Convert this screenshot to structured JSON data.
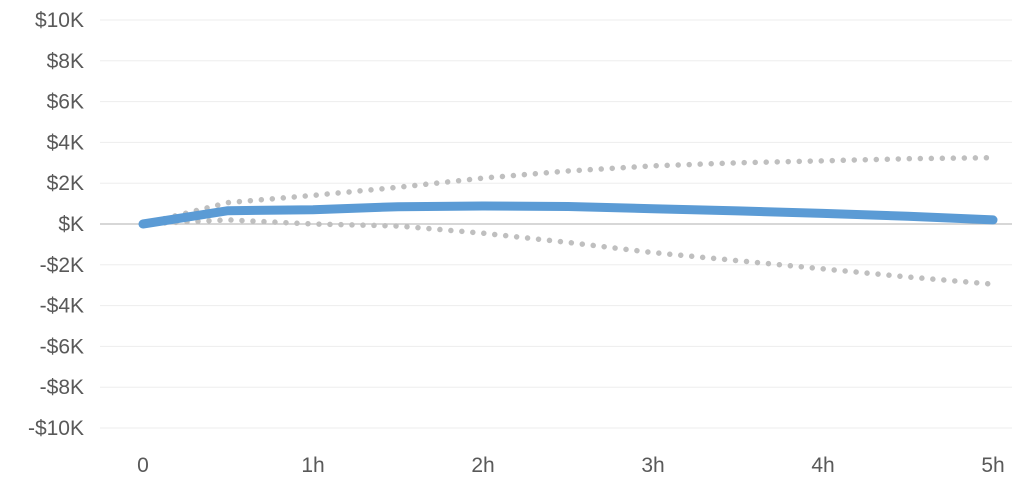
{
  "chart_data": {
    "type": "line",
    "title": "",
    "xlabel": "",
    "ylabel": "",
    "x": [
      0,
      0.5,
      1,
      1.5,
      2,
      2.5,
      3,
      3.5,
      4,
      4.5,
      5
    ],
    "x_tick_values": [
      0,
      1,
      2,
      3,
      4,
      5
    ],
    "x_tick_labels": [
      "0",
      "1h",
      "2h",
      "3h",
      "4h",
      "5h"
    ],
    "xlim": [
      0,
      5
    ],
    "y_tick_values": [
      10000,
      8000,
      6000,
      4000,
      2000,
      0,
      -2000,
      -4000,
      -6000,
      -8000,
      -10000
    ],
    "y_tick_labels": [
      "$10K",
      "$8K",
      "$6K",
      "$4K",
      "$2K",
      "$K",
      "-$2K",
      "-$4K",
      "-$6K",
      "-$8K",
      "-$10K"
    ],
    "ylim": [
      -10000,
      10000
    ],
    "grid": true,
    "legend": "none",
    "series": [
      {
        "values": [
          0,
          650,
          700,
          850,
          880,
          860,
          750,
          640,
          520,
          380,
          200
        ],
        "color": "#5B9BD5",
        "style": "solid"
      },
      {
        "values": [
          0,
          1050,
          1400,
          1800,
          2250,
          2600,
          2850,
          3000,
          3100,
          3200,
          3250
        ],
        "color": "#BFBFBF",
        "style": "dotted"
      },
      {
        "values": [
          0,
          200,
          0,
          -100,
          -450,
          -900,
          -1400,
          -1800,
          -2200,
          -2600,
          -2950
        ],
        "color": "#BFBFBF",
        "style": "dotted"
      }
    ]
  }
}
